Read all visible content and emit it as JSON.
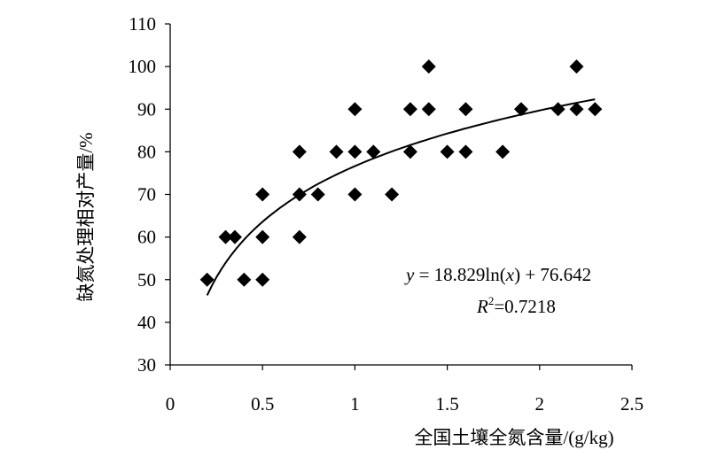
{
  "chart_data": {
    "type": "scatter",
    "title": "",
    "xlabel": "全国土壤全氮含量/(g/kg)",
    "ylabel": "缺氮处理相对产量/%",
    "xlim": [
      0,
      2.5
    ],
    "ylim": [
      30,
      110
    ],
    "xticks": [
      "0",
      "0.5",
      "1",
      "1.5",
      "2",
      "2.5"
    ],
    "yticks": [
      "30",
      "40",
      "50",
      "60",
      "70",
      "80",
      "90",
      "100",
      "110"
    ],
    "grid": false,
    "legend": "none",
    "marker": "diamond",
    "color": "#000000",
    "points": [
      [
        0.2,
        50
      ],
      [
        0.3,
        60
      ],
      [
        0.35,
        60
      ],
      [
        0.4,
        50
      ],
      [
        0.5,
        50
      ],
      [
        0.5,
        60
      ],
      [
        0.5,
        70
      ],
      [
        0.7,
        60
      ],
      [
        0.7,
        70
      ],
      [
        0.7,
        80
      ],
      [
        0.8,
        70
      ],
      [
        0.9,
        80
      ],
      [
        1.0,
        70
      ],
      [
        1.0,
        80
      ],
      [
        1.0,
        90
      ],
      [
        1.1,
        80
      ],
      [
        1.2,
        70
      ],
      [
        1.3,
        80
      ],
      [
        1.3,
        90
      ],
      [
        1.4,
        90
      ],
      [
        1.4,
        100
      ],
      [
        1.5,
        80
      ],
      [
        1.6,
        80
      ],
      [
        1.6,
        90
      ],
      [
        1.8,
        80
      ],
      [
        1.9,
        90
      ],
      [
        2.1,
        90
      ],
      [
        2.2,
        90
      ],
      [
        2.2,
        100
      ],
      [
        2.3,
        90
      ]
    ],
    "trendline": {
      "type": "logarithmic",
      "a": 18.829,
      "b": 76.642,
      "x_range": [
        0.2,
        2.3
      ]
    },
    "annotations": {
      "equation_y": "y",
      "equation_eq": " = 18.829ln(",
      "equation_x": "x",
      "equation_rest": ") + 76.642",
      "r2_R": "R",
      "r2_sup": "2",
      "r2_value": "=0.7218"
    }
  }
}
